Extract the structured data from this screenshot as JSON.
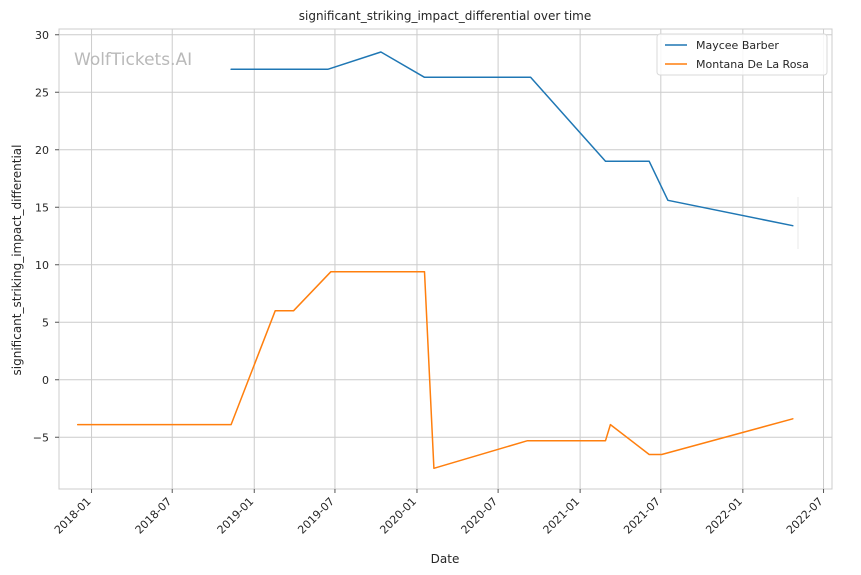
{
  "watermark": "WolfTickets.AI",
  "chart_data": {
    "type": "line",
    "title": "significant_striking_impact_differential over time",
    "xlabel": "Date",
    "ylabel": "significant_striking_impact_differential",
    "x_tick_labels": [
      "2018-01",
      "2018-07",
      "2019-01",
      "2019-07",
      "2020-01",
      "2020-07",
      "2021-01",
      "2021-07",
      "2022-01",
      "2022-07"
    ],
    "x_tick_dates": [
      "2018-01-01",
      "2018-07-01",
      "2019-01-01",
      "2019-07-01",
      "2020-01-01",
      "2020-07-01",
      "2021-01-01",
      "2021-07-01",
      "2022-01-01",
      "2022-07-01"
    ],
    "xlim": [
      "2017-10-20",
      "2022-07-20"
    ],
    "y_ticks": [
      -5,
      0,
      5,
      10,
      15,
      20,
      25,
      30
    ],
    "y_tick_labels": [
      "−5",
      "0",
      "5",
      "10",
      "15",
      "20",
      "25",
      "30"
    ],
    "ylim": [
      -9.5,
      30.5
    ],
    "grid": true,
    "legend_position": "top-right",
    "series": [
      {
        "name": "Maycee Barber",
        "color": "#1f77b4",
        "points": [
          [
            "2018-11-10",
            27.0
          ],
          [
            "2019-06-15",
            27.0
          ],
          [
            "2019-10-12",
            28.5
          ],
          [
            "2020-01-18",
            26.3
          ],
          [
            "2020-09-12",
            26.3
          ],
          [
            "2021-02-27",
            19.0
          ],
          [
            "2021-06-05",
            19.0
          ],
          [
            "2021-07-17",
            15.6
          ],
          [
            "2022-04-23",
            13.4
          ]
        ]
      },
      {
        "name": "Montana De La Rosa",
        "color": "#ff7f0e",
        "points": [
          [
            "2017-12-01",
            -3.9
          ],
          [
            "2018-11-10",
            -3.9
          ],
          [
            "2019-02-17",
            6.0
          ],
          [
            "2019-03-30",
            6.0
          ],
          [
            "2019-06-22",
            9.4
          ],
          [
            "2020-01-18",
            9.4
          ],
          [
            "2020-02-08",
            -7.7
          ],
          [
            "2020-09-05",
            -5.3
          ],
          [
            "2021-02-27",
            -5.3
          ],
          [
            "2021-03-10",
            -3.9
          ],
          [
            "2021-06-05",
            -6.5
          ],
          [
            "2021-07-03",
            -6.5
          ],
          [
            "2022-04-23",
            -3.4
          ]
        ]
      }
    ]
  }
}
